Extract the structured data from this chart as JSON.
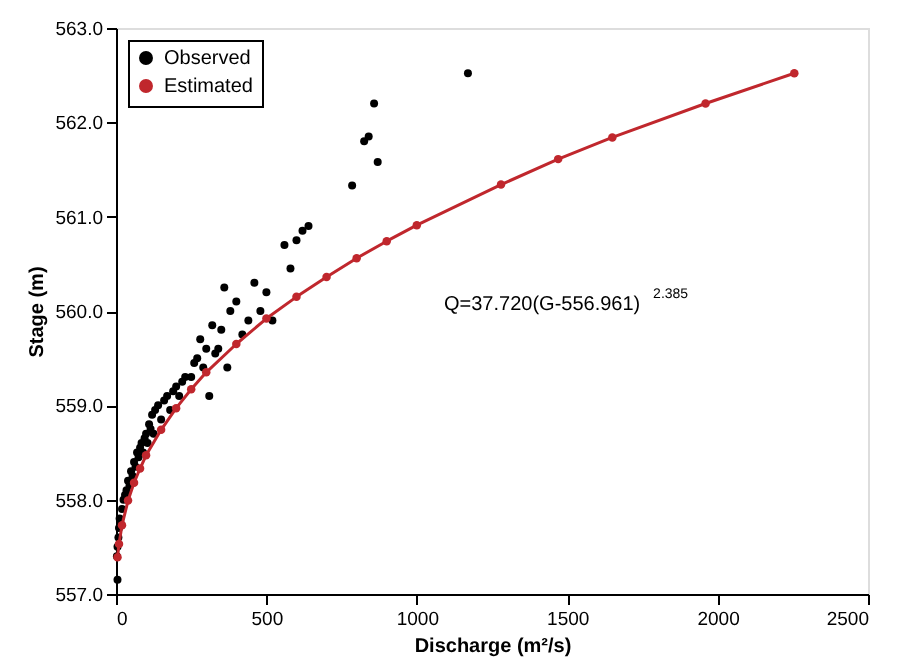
{
  "chart_data": {
    "type": "scatter",
    "xlabel": "Discharge (m²/s)",
    "ylabel": "Stage (m)",
    "xlim": [
      0,
      2500
    ],
    "xticks": [
      0,
      500,
      1000,
      1500,
      2000,
      2500
    ],
    "ylim": [
      557,
      563
    ],
    "yticks": [
      {
        "value": 557,
        "label": "557.0"
      },
      {
        "value": 558,
        "label": "558.0"
      },
      {
        "value": 559,
        "label": "559.0"
      },
      {
        "value": 560,
        "label": "560.0"
      },
      {
        "value": 561,
        "label": "561.0"
      },
      {
        "value": 562,
        "label": "562.0"
      },
      {
        "value": 563,
        "label": "563.0"
      }
    ],
    "grid": false,
    "legend": "top left",
    "marker": "circle",
    "annotations": [
      "Q=37.720(G-556.961)$^{2.385}$"
    ],
    "series": [
      {
        "name": "Observed",
        "color": "#000000",
        "x": [
          5,
          3,
          5,
          8,
          10,
          12,
          15,
          20,
          25,
          30,
          35,
          40,
          45,
          50,
          55,
          60,
          65,
          70,
          75,
          80,
          85,
          90,
          95,
          100,
          105,
          110,
          115,
          120,
          125,
          130,
          140,
          150,
          160,
          170,
          180,
          190,
          200,
          210,
          220,
          230,
          250,
          260,
          270,
          280,
          290,
          300,
          310,
          320,
          330,
          340,
          350,
          360,
          370,
          380,
          400,
          420,
          440,
          460,
          480,
          500,
          520,
          560,
          580,
          600,
          620,
          640,
          785,
          825,
          840,
          858,
          870,
          1170
        ],
        "values": [
          557.15,
          557.4,
          557.5,
          557.6,
          557.7,
          557.8,
          557.75,
          557.9,
          558.0,
          558.05,
          558.1,
          558.2,
          558.15,
          558.3,
          558.25,
          558.4,
          558.35,
          558.5,
          558.45,
          558.55,
          558.6,
          558.5,
          558.65,
          558.7,
          558.6,
          558.8,
          558.75,
          558.9,
          558.7,
          558.95,
          559.0,
          558.85,
          559.05,
          559.1,
          558.95,
          559.15,
          559.2,
          559.1,
          559.25,
          559.3,
          559.3,
          559.45,
          559.5,
          559.7,
          559.4,
          559.6,
          559.1,
          559.85,
          559.55,
          559.6,
          559.8,
          560.25,
          559.4,
          560.0,
          560.1,
          559.75,
          559.9,
          560.3,
          560.0,
          560.2,
          559.9,
          560.7,
          560.45,
          560.75,
          560.85,
          560.9,
          561.33,
          561.8,
          561.85,
          562.2,
          561.58,
          562.52
        ]
      },
      {
        "name": "Estimated",
        "type": "line",
        "color": "#c0272d",
        "x": [
          5,
          10,
          20,
          40,
          60,
          80,
          100,
          150,
          200,
          250,
          300,
          400,
          500,
          600,
          700,
          800,
          900,
          1000,
          1280,
          1470,
          1650,
          1960,
          2255
        ],
        "values": [
          557.39,
          557.53,
          557.73,
          557.99,
          558.18,
          558.33,
          558.47,
          558.74,
          558.97,
          559.17,
          559.35,
          559.65,
          559.92,
          560.15,
          560.36,
          560.56,
          560.74,
          560.91,
          561.34,
          561.61,
          561.84,
          562.2,
          562.52
        ]
      }
    ]
  }
}
